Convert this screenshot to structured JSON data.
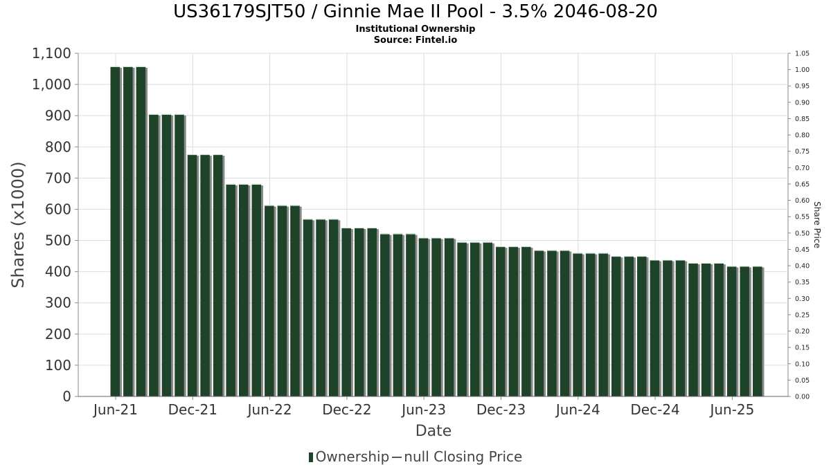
{
  "title": "US36179SJT50 / Ginnie Mae II Pool - 3.5% 2046-08-20",
  "subtitle": "Institutional Ownership",
  "source": "Source: Fintel.io",
  "legend": {
    "ownership": "Ownership",
    "price": "null Closing Price"
  },
  "colors": {
    "bar": "#1f4328",
    "bar_shadow": "#8a8a8a",
    "grid": "#dddddd",
    "axis": "#888888"
  },
  "chart_data": {
    "type": "bar",
    "title": "US36179SJT50 / Ginnie Mae II Pool - 3.5% 2046-08-20",
    "subtitle": "Institutional Ownership",
    "xlabel": "Date",
    "ylabel": "Shares (x1000)",
    "y2label": "Share Price",
    "ylim": [
      0,
      1100
    ],
    "y2lim": [
      0,
      1.05
    ],
    "y_ticks": [
      "0",
      "100",
      "200",
      "300",
      "400",
      "500",
      "600",
      "700",
      "800",
      "900",
      "1,000",
      "1,100"
    ],
    "y2_ticks": [
      "0.00",
      "0.05",
      "0.10",
      "0.15",
      "0.20",
      "0.25",
      "0.30",
      "0.35",
      "0.40",
      "0.45",
      "0.50",
      "0.55",
      "0.60",
      "0.65",
      "0.70",
      "0.75",
      "0.80",
      "0.85",
      "0.90",
      "0.95",
      "1.00",
      "1.05"
    ],
    "x_ticks": [
      "Jun-21",
      "Dec-21",
      "Jun-22",
      "Dec-22",
      "Jun-23",
      "Dec-23",
      "Jun-24",
      "Dec-24",
      "Jun-25"
    ],
    "series": [
      {
        "name": "Ownership",
        "values": [
          1058,
          1058,
          1058,
          905,
          905,
          905,
          776,
          776,
          776,
          681,
          681,
          681,
          613,
          613,
          613,
          569,
          569,
          569,
          541,
          541,
          541,
          522,
          522,
          522,
          509,
          509,
          509,
          495,
          495,
          495,
          481,
          481,
          481,
          469,
          469,
          469,
          460,
          460,
          460,
          450,
          450,
          450,
          438,
          438,
          438,
          428,
          428,
          428,
          418,
          418,
          418
        ]
      }
    ],
    "grid": true,
    "legend_position": "bottom"
  }
}
